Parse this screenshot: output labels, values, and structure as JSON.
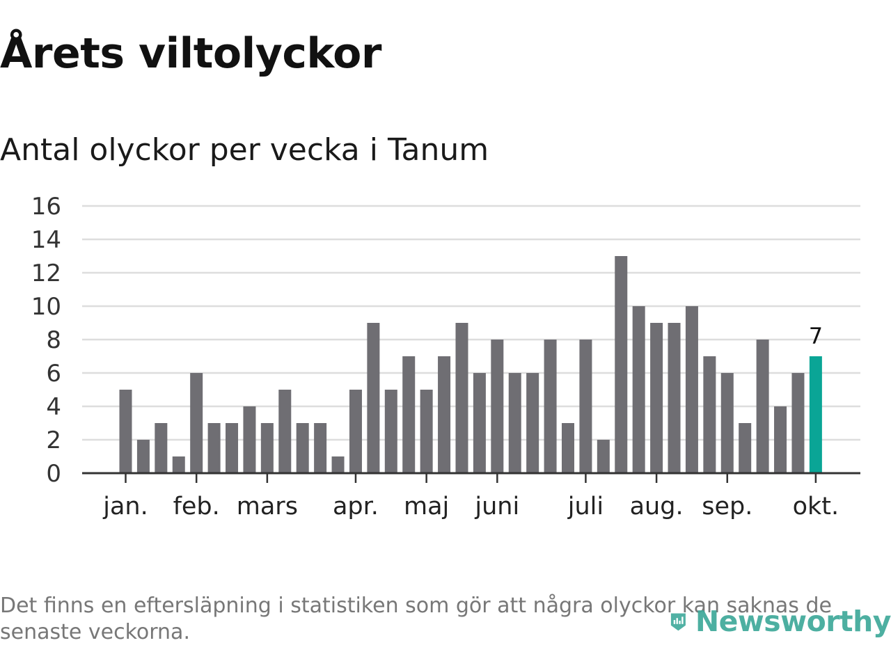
{
  "title": "Årets viltolyckor",
  "subtitle": "Antal olyckor per vecka i Tanum",
  "footnote": "Det finns en eftersläpning i statistiken som gör att några olyckor kan saknas de senaste veckorna.",
  "logo_text": "Newsworthy",
  "colors": {
    "bar": "#6f6e73",
    "highlight": "#0aa596",
    "grid": "#dddddd",
    "axis": "#333333",
    "brand": "#3ea99a"
  },
  "chart_data": {
    "type": "bar",
    "ylim": [
      0,
      16
    ],
    "yticks": [
      0,
      2,
      4,
      6,
      8,
      10,
      12,
      14,
      16
    ],
    "grid": true,
    "values": [
      5,
      2,
      3,
      1,
      6,
      3,
      3,
      4,
      3,
      5,
      3,
      3,
      1,
      5,
      9,
      5,
      7,
      5,
      7,
      9,
      6,
      8,
      6,
      6,
      8,
      3,
      8,
      2,
      13,
      10,
      9,
      9,
      10,
      7,
      6,
      3,
      8,
      4,
      6,
      7
    ],
    "highlight_index": 39,
    "highlight_label": "7",
    "month_labels": [
      {
        "label": "jan.",
        "bar_index": 0
      },
      {
        "label": "feb.",
        "bar_index": 4
      },
      {
        "label": "mars",
        "bar_index": 8
      },
      {
        "label": "apr.",
        "bar_index": 13
      },
      {
        "label": "maj",
        "bar_index": 17
      },
      {
        "label": "juni",
        "bar_index": 21
      },
      {
        "label": "juli",
        "bar_index": 26
      },
      {
        "label": "aug.",
        "bar_index": 30
      },
      {
        "label": "sep.",
        "bar_index": 34
      },
      {
        "label": "okt.",
        "bar_index": 39
      }
    ]
  }
}
